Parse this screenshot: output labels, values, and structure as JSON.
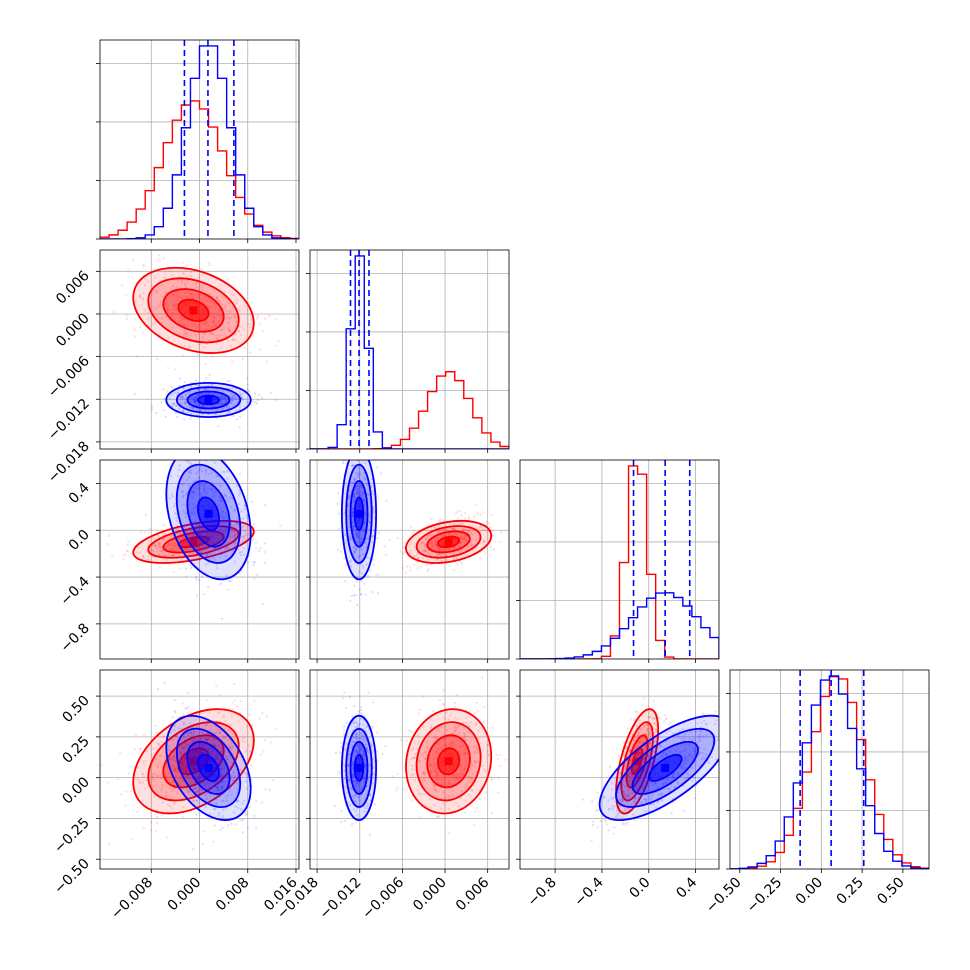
{
  "chart_data": {
    "type": "corner",
    "params": [
      {
        "ticks": [
          -0.008,
          0.0,
          0.008,
          0.016
        ],
        "tick_labels": [
          "−0.008",
          "0.000",
          "0.008",
          "0.016"
        ],
        "range": [
          -0.0165,
          0.0165
        ]
      },
      {
        "ticks": [
          -0.018,
          -0.012,
          -0.006,
          0.0,
          0.006
        ],
        "tick_labels": [
          "−0.018",
          "−0.012",
          "−0.006",
          "0.000",
          "0.006"
        ],
        "range": [
          -0.019,
          0.009
        ]
      },
      {
        "ticks": [
          -0.8,
          -0.4,
          0.0,
          0.4
        ],
        "tick_labels": [
          "−0.8",
          "−0.4",
          "0.0",
          "0.4"
        ],
        "range": [
          -1.1,
          0.6
        ]
      },
      {
        "ticks": [
          -0.5,
          -0.25,
          0.0,
          0.25,
          0.5
        ],
        "tick_labels": [
          "−0.50",
          "−0.25",
          "0.00",
          "0.25",
          "0.50"
        ],
        "range": [
          -0.56,
          0.66
        ]
      }
    ],
    "series": [
      {
        "color": "#ff0000",
        "mean": [
          -0.001,
          0.0005,
          -0.1,
          0.1
        ],
        "sd": [
          0.005,
          0.003,
          0.09,
          0.16
        ]
      },
      {
        "color": "#0000ff",
        "mean": [
          0.0015,
          -0.0121,
          0.14,
          0.06
        ],
        "sd": [
          0.0035,
          0.0012,
          0.28,
          0.16
        ]
      }
    ],
    "quantile_lines": [
      {
        "color": "#0000ff",
        "values": [
          -0.0025,
          0.0014,
          0.0057
        ]
      },
      {
        "color": "#0000ff",
        "values": [
          -0.0133,
          -0.0121,
          -0.0107
        ]
      },
      {
        "color": "#0000ff",
        "values": [
          -0.13,
          0.14,
          0.35
        ]
      },
      {
        "color": "#0000ff",
        "values": [
          -0.13,
          0.06,
          0.26
        ]
      }
    ],
    "grid": true,
    "legend": "none"
  }
}
